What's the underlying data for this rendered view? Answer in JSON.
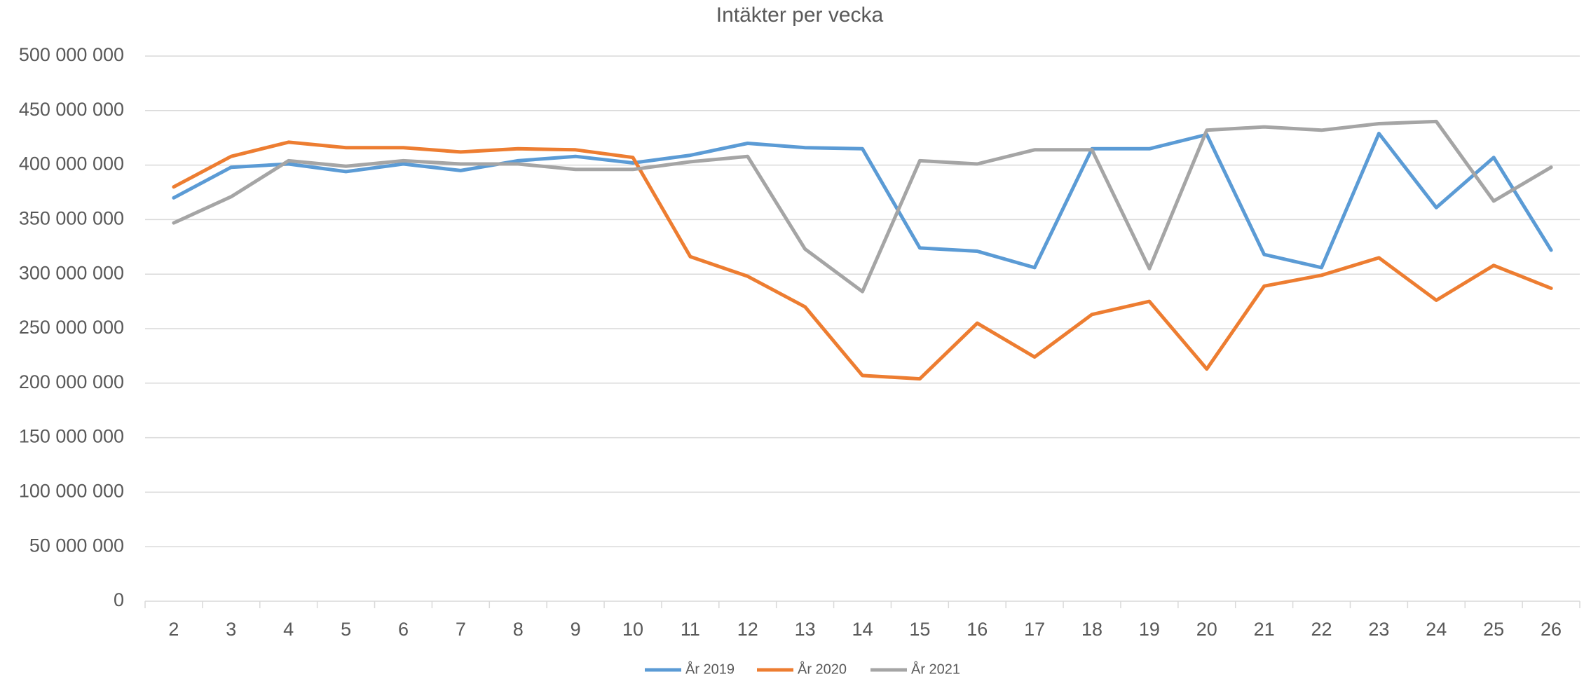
{
  "chart_data": {
    "type": "line",
    "title": "Intäkter per vecka",
    "categories": [
      "2",
      "3",
      "4",
      "5",
      "6",
      "7",
      "8",
      "9",
      "10",
      "11",
      "12",
      "13",
      "14",
      "15",
      "16",
      "17",
      "18",
      "19",
      "20",
      "21",
      "22",
      "23",
      "24",
      "25",
      "26"
    ],
    "series": [
      {
        "name": "År 2019",
        "color": "#5b9bd5",
        "values": [
          370000000,
          398000000,
          401000000,
          394000000,
          401000000,
          395000000,
          404000000,
          408000000,
          402000000,
          409000000,
          420000000,
          416000000,
          415000000,
          324000000,
          321000000,
          306000000,
          415000000,
          415000000,
          428000000,
          318000000,
          306000000,
          429000000,
          361000000,
          407000000,
          322000000
        ]
      },
      {
        "name": "År 2020",
        "color": "#ed7d31",
        "values": [
          380000000,
          408000000,
          421000000,
          416000000,
          416000000,
          412000000,
          415000000,
          414000000,
          407000000,
          316000000,
          298000000,
          270000000,
          207000000,
          204000000,
          255000000,
          224000000,
          263000000,
          275000000,
          213000000,
          289000000,
          299000000,
          315000000,
          276000000,
          308000000,
          287000000
        ]
      },
      {
        "name": "År 2021",
        "color": "#a5a5a5",
        "values": [
          347000000,
          371000000,
          404000000,
          399000000,
          404000000,
          401000000,
          401000000,
          396000000,
          396000000,
          403000000,
          408000000,
          323000000,
          284000000,
          404000000,
          401000000,
          414000000,
          414000000,
          305000000,
          432000000,
          435000000,
          432000000,
          438000000,
          440000000,
          367000000,
          398000000
        ]
      }
    ],
    "ylim": [
      0,
      500000000
    ],
    "yticks": [
      0,
      {
        "value": 50000000,
        "label": "50 000 000"
      },
      {
        "value": 100000000,
        "label": "100 000 000"
      },
      {
        "value": 150000000,
        "label": "150 000 000"
      },
      {
        "value": 200000000,
        "label": "200 000 000"
      },
      {
        "value": 250000000,
        "label": "250 000 000"
      },
      {
        "value": 300000000,
        "label": "300 000 000"
      },
      {
        "value": 350000000,
        "label": "350 000 000"
      },
      {
        "value": 400000000,
        "label": "400 000 000"
      },
      {
        "value": 450000000,
        "label": "450 000 000"
      },
      {
        "value": 500000000,
        "label": "500 000 000"
      }
    ],
    "grid": true,
    "legend": "bottom"
  }
}
